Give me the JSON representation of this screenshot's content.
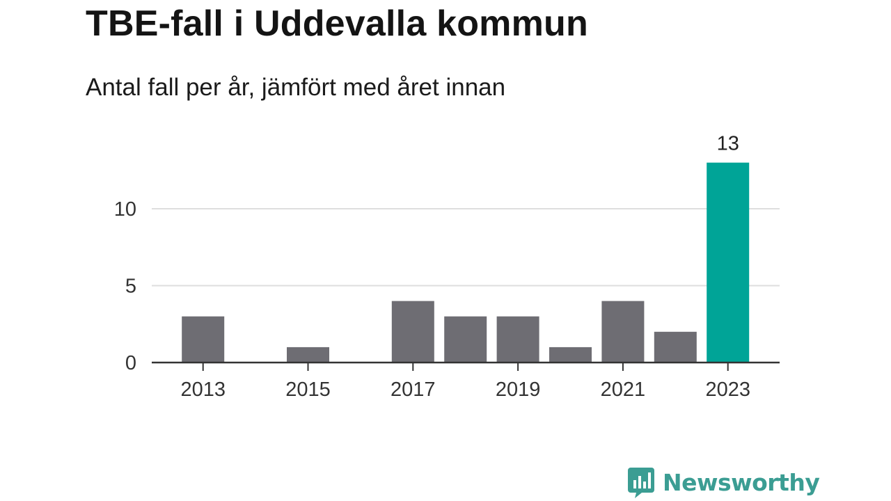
{
  "header": {
    "title": "TBE-fall i Uddevalla kommun",
    "subtitle": "Antal fall per år, jämfört med året innan"
  },
  "brand": {
    "name": "Newsworthy",
    "color": "#3b9d93",
    "icon": "bar-chart-speech-bubble-icon"
  },
  "colors": {
    "bar_default": "#6e6d73",
    "bar_highlight": "#00a497",
    "gridline": "#dedede",
    "axis": "#333333"
  },
  "chart_data": {
    "type": "bar",
    "categories": [
      "2013",
      "2014",
      "2015",
      "2016",
      "2017",
      "2018",
      "2019",
      "2020",
      "2021",
      "2022",
      "2023"
    ],
    "values": [
      3,
      0,
      1,
      0,
      4,
      3,
      3,
      1,
      4,
      2,
      13
    ],
    "x_tick_labels": [
      "2013",
      "2015",
      "2017",
      "2019",
      "2021",
      "2023"
    ],
    "y_ticks": [
      0,
      5,
      10
    ],
    "y_tick_labels": [
      "0",
      "5",
      "10"
    ],
    "ylim": [
      0,
      13
    ],
    "grid": true,
    "highlight_category": "2023",
    "data_labels": [
      {
        "category": "2023",
        "text": "13"
      }
    ]
  }
}
